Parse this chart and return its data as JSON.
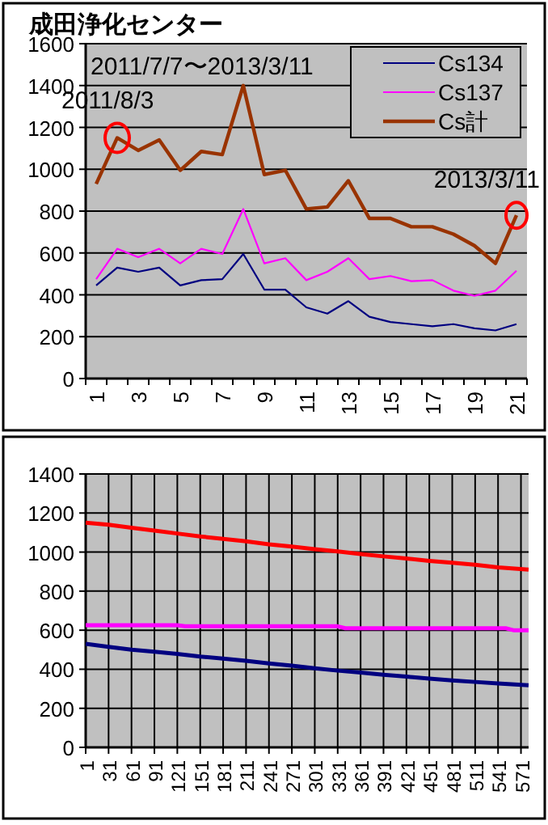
{
  "chart_data": [
    {
      "type": "line",
      "title": "成田浄化センター",
      "categories": [
        "1",
        null,
        "3",
        null,
        "5",
        null,
        "7",
        null,
        "9",
        null,
        "11",
        null,
        "13",
        null,
        "15",
        null,
        "17",
        null,
        "19",
        null,
        "21"
      ],
      "series": [
        {
          "name": "Cs134",
          "color": "#000080",
          "values": [
            445,
            530,
            510,
            530,
            445,
            470,
            475,
            595,
            425,
            425,
            340,
            310,
            370,
            295,
            270,
            260,
            250,
            260,
            240,
            230,
            260
          ]
        },
        {
          "name": "Cs137",
          "color": "#ff00ff",
          "values": [
            475,
            620,
            580,
            620,
            550,
            620,
            595,
            810,
            550,
            575,
            470,
            510,
            575,
            475,
            490,
            465,
            470,
            420,
            395,
            420,
            515
          ]
        },
        {
          "name": "Cs計",
          "color": "#993300",
          "values": [
            930,
            1150,
            1090,
            1140,
            995,
            1085,
            1070,
            1400,
            975,
            995,
            810,
            820,
            945,
            765,
            765,
            725,
            725,
            690,
            635,
            550,
            780
          ]
        }
      ],
      "ylim": [
        0,
        1600
      ],
      "yticks": [
        0,
        200,
        400,
        600,
        800,
        1000,
        1200,
        1400,
        1600
      ],
      "grid": "y",
      "legend": "top right",
      "annotations": [
        "2011/7/7〜2013/3/11",
        "2011/8/3",
        {
          "text": "2013/3/11",
          "x": "21",
          "y": 780
        }
      ]
    },
    {
      "type": "line",
      "x": [
        1,
        31,
        61,
        91,
        121,
        151,
        181,
        211,
        241,
        271,
        301,
        331,
        361,
        391,
        421,
        451,
        481,
        511,
        541,
        581
      ],
      "series": [
        {
          "color": "#ff0000",
          "values": [
            1150,
            1140,
            1125,
            1110,
            1095,
            1080,
            1068,
            1055,
            1040,
            1028,
            1015,
            1003,
            990,
            978,
            967,
            955,
            945,
            935,
            922,
            910
          ]
        },
        {
          "color": "#ff00ff",
          "x": [
            1,
            121,
            131,
            331,
            341,
            551,
            561,
            581
          ],
          "values": [
            625,
            625,
            620,
            620,
            610,
            610,
            600,
            600
          ]
        },
        {
          "color": "#000080",
          "values": [
            530,
            515,
            500,
            490,
            478,
            465,
            455,
            443,
            430,
            418,
            405,
            393,
            383,
            372,
            362,
            352,
            343,
            335,
            327,
            318
          ]
        }
      ],
      "xlim": [
        1,
        581
      ],
      "xticks": [
        1,
        31,
        61,
        91,
        121,
        151,
        181,
        211,
        241,
        271,
        301,
        331,
        361,
        391,
        421,
        451,
        481,
        511,
        541,
        571
      ],
      "ylim": [
        0,
        1400
      ],
      "yticks": [
        0,
        200,
        400,
        600,
        800,
        1000,
        1200,
        1400
      ],
      "grid": true
    }
  ]
}
